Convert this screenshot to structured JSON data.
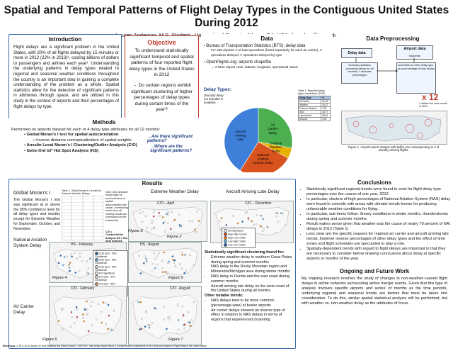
{
  "header": {
    "title": "Spatial and Temporal Patterns of Flight Delay Types in the Contiguous United States During 2012",
    "authors": "Lauren Anderson, M.S. Student - University of Georgia, Athens, GA, USA  - leanders@uga.edu"
  },
  "introduction": {
    "heading": "Introduction",
    "body": "Flight delays are a significant problem in the United States, with 20% of all flights delayed by 15 minutes or more in 2012 (22% in 2013)¹, costing billions of dollars to passengers and airlines each year². Understanding the underlying patterns in delay types related to regional and seasonal weather conditions throughout the country is an important step in gaining a complete understanding of the problem as a whole. Spatial statistics allow for the detection of significant patterns in attributes through space, and are utilized in this study in the context of airports and their percentages of flight delays by type."
  },
  "objective": {
    "heading": "Objective",
    "line1": "To understand statistically significant temporal and spatial patterns of four reported flight delay types in the United States in 2012",
    "line2": "→ Do certain regions exhibit significant clustering of higher percentages of delay types during certain times of the year?"
  },
  "data": {
    "heading": "Data",
    "bullet1": "Bureau of Transportation Statistics (BTS): delay data",
    "sub1": "For 296 airports: # of total operations (listed separately for each air carrier), # operations delayed, # operations delayed by type",
    "bullet2": "OpenFlights.org: airports shapefile",
    "sub2": "→ 3 letter airport code, latitude, longitude, operational status",
    "pie_title": "Delay Types:",
    "pie_note": "(Security delay not included in analysis)",
    "table_caption": "Table 1. Reported delay types breakdown (2012)",
    "table_head": [
      "Delay Type",
      "%"
    ],
    "table_rows": [
      [
        "All Carrier",
        "26.39"
      ],
      [
        "Weather",
        "16.27"
      ],
      [
        "Extreme Weather",
        "3.93"
      ],
      [
        "NAS",
        "34.77"
      ],
      [
        "Late Aircraft",
        "38.64"
      ],
      [
        "Security",
        "0.09"
      ]
    ]
  },
  "pie_chart": {
    "chart_data": {
      "type": "pie",
      "categories": [
        "Air Carrier Delay",
        "Extreme Weather Delay",
        "National Aviation System Delay",
        "Aircraft Arriving Late"
      ],
      "values": [
        28,
        5,
        26,
        41
      ],
      "colors": [
        "#4caf50",
        "#e8b100",
        "#d9531e",
        "#3d7fd9"
      ]
    },
    "labels": [
      "Air Carrier Delay",
      "Extreme Weather Delay",
      "National Aviation System Delay",
      "Aircraft Arriving Late"
    ]
  },
  "preprocessing": {
    "heading": "Data Preprocessing",
    "delay_data": "Delay data",
    "airport_data": "Airport data",
    "shapefile": "shapefile",
    "summary": "Summary statistics (summing values for all carriers) + calculate percentages",
    "attr_join": "Add fields for each delay type as a percentage of total delays",
    "x12": "x 12",
    "x12_note": "1 dataset for each month in 2012",
    "fig_caption": "Figure 1. Airports points dataset with buffer size corresponding to # of monthly arriving flights."
  },
  "methods": {
    "heading": "Methods",
    "intro": "Performed on airports dataset for each of 4 delay type attributes for all 12 months:",
    "b1": "Global Moran's I test for spatial autocorrelation",
    "b1_sub": "Inverse distance conceptualization of spatial weights",
    "b2": "Anselin Local Moran's I Clustering/Outlier Analysis (C/O)",
    "b3": "Getis-Ord Gi* Hot Spot Analysis (HS)",
    "q1": "Are there significant patterns?",
    "q2": "Where are the significant patterns?"
  },
  "results": {
    "heading": "Results",
    "moran_heading": "Global Moran's I",
    "moran_text": "The Global Moran's I test was significant at or above the 95% confidence level for all delay types and months except for Extreme Weather for September, October, and November.",
    "table2_caption": "Table 2. Global Moran's I results for Extreme Weather Delays",
    "table2_note": "Note: Only selected result maps for local indicators of spatial autocorrelation are shown. Overarching trends from all monthly results are summarized in the bulleted list.",
    "table2_key": "C/O = Cluster/Outlier Analysis HS = Hot Spot Analysis",
    "map_extreme": "Extreme Weather Delay",
    "map_late": "Aircraft Arriving Late Delay",
    "co_april": "C/O – April",
    "co_december": "C/O – December",
    "fig2": "Figure 2",
    "fig3": "Figure 3",
    "hs_august": "HS - August",
    "nas_label": "National Aviation System Delay",
    "air_label": "Air Carrier Delay",
    "hs_february": "HS - February",
    "co_february": "C/O - February",
    "co_august": "C/O - August",
    "fig4": "Figure 4",
    "fig5": "Figure 5",
    "fig6": "Figure 6",
    "fig7": "Figure 7",
    "cluster_heading": "Statistically significant clustering found for:",
    "cluster_items": [
      "Extreme weather delay in southern Great Plains during spring and summer months",
      "NAS delay in the Rocky Mountain region and Minnesota/Michigan area during winter months",
      "NAS delay in Florida and the east coast during summer months",
      "Aircraft arriving late delay on the west coast of the United States during all months"
    ],
    "other_heading": "Other notable trends:",
    "other_items": [
      "NAS delays tend to be more common (percentage-wise) at busier airports",
      "Air carrier delays showed an inverse type of effect in relation to NAS delays in terms of regions that experienced clustering"
    ]
  },
  "legend_items": [
    "Not Significant",
    "High-High Cluster",
    "High-Low Outlier",
    "Low-High Outlier",
    "Low-Low Cluster"
  ],
  "legend_hs": [
    "Cold Spot - 99% Confidence",
    "Cold Spot - 95% Confidence",
    "Cold Spot - 90% Confidence",
    "Not Significant",
    "Hot Spot - 90% Confidence",
    "Hot Spot - 95% Confidence",
    "Hot Spot - 99% Confidence"
  ],
  "conclusions": {
    "heading": "Conclusions",
    "items": [
      "Statistically significant regional trends were found to exist for flight delay type percentages over the course of one year, 2012.",
      "In particular, clusters of high percentages of National Aviation System (NAS) delay were found to coincide with areas with climatic trends known for producing unfavorable weather conditions for flying.",
      "In particular, sub-items follow: Snowy conditions in winter months, thunderstorms during spring and summer months",
      "Result makes sense given that weather was the cause of nearly 70 percent of NAS delays in 2012 (Table 1)",
      "Less clear are the specific reasons for regional air carrier and aircraft arriving late trends, however inverse percentages of other delay types and the effect of time zones and flight schedules are speculated to play a role.",
      "Spatially-dependent trends with regard to flight delays are important in that they are necessary to consider before drawing conclusions about delay at specific airports or months of the year."
    ]
  },
  "future": {
    "heading": "Ongoing and Future Work",
    "body": "My ongoing research involves the study of changes in non-weather-caused flight delays in airline networks surrounding airline merger events. Given that this type of analysis involves specific airports and series' of months as the time periods, underlying regional and seasonal trends are factors that must be taken into consideration. To do this, similar spatial statistical analysis will be performed, but with weather vs. non-weather delay as the attributes of focus."
  },
  "references": {
    "label": "References:",
    "text": "1. BTS. 2013. Airline On-Time Statistics and Delay Causes  2. NEXTOR. Total Delay Impact Study: A Comprehensive Assessment of the Costs and Impacts of Flight Delay in the United States."
  },
  "colors": {
    "frame": "#3a6aa8",
    "objective_border": "#c0392b",
    "accent_text": "#1f3f86"
  }
}
